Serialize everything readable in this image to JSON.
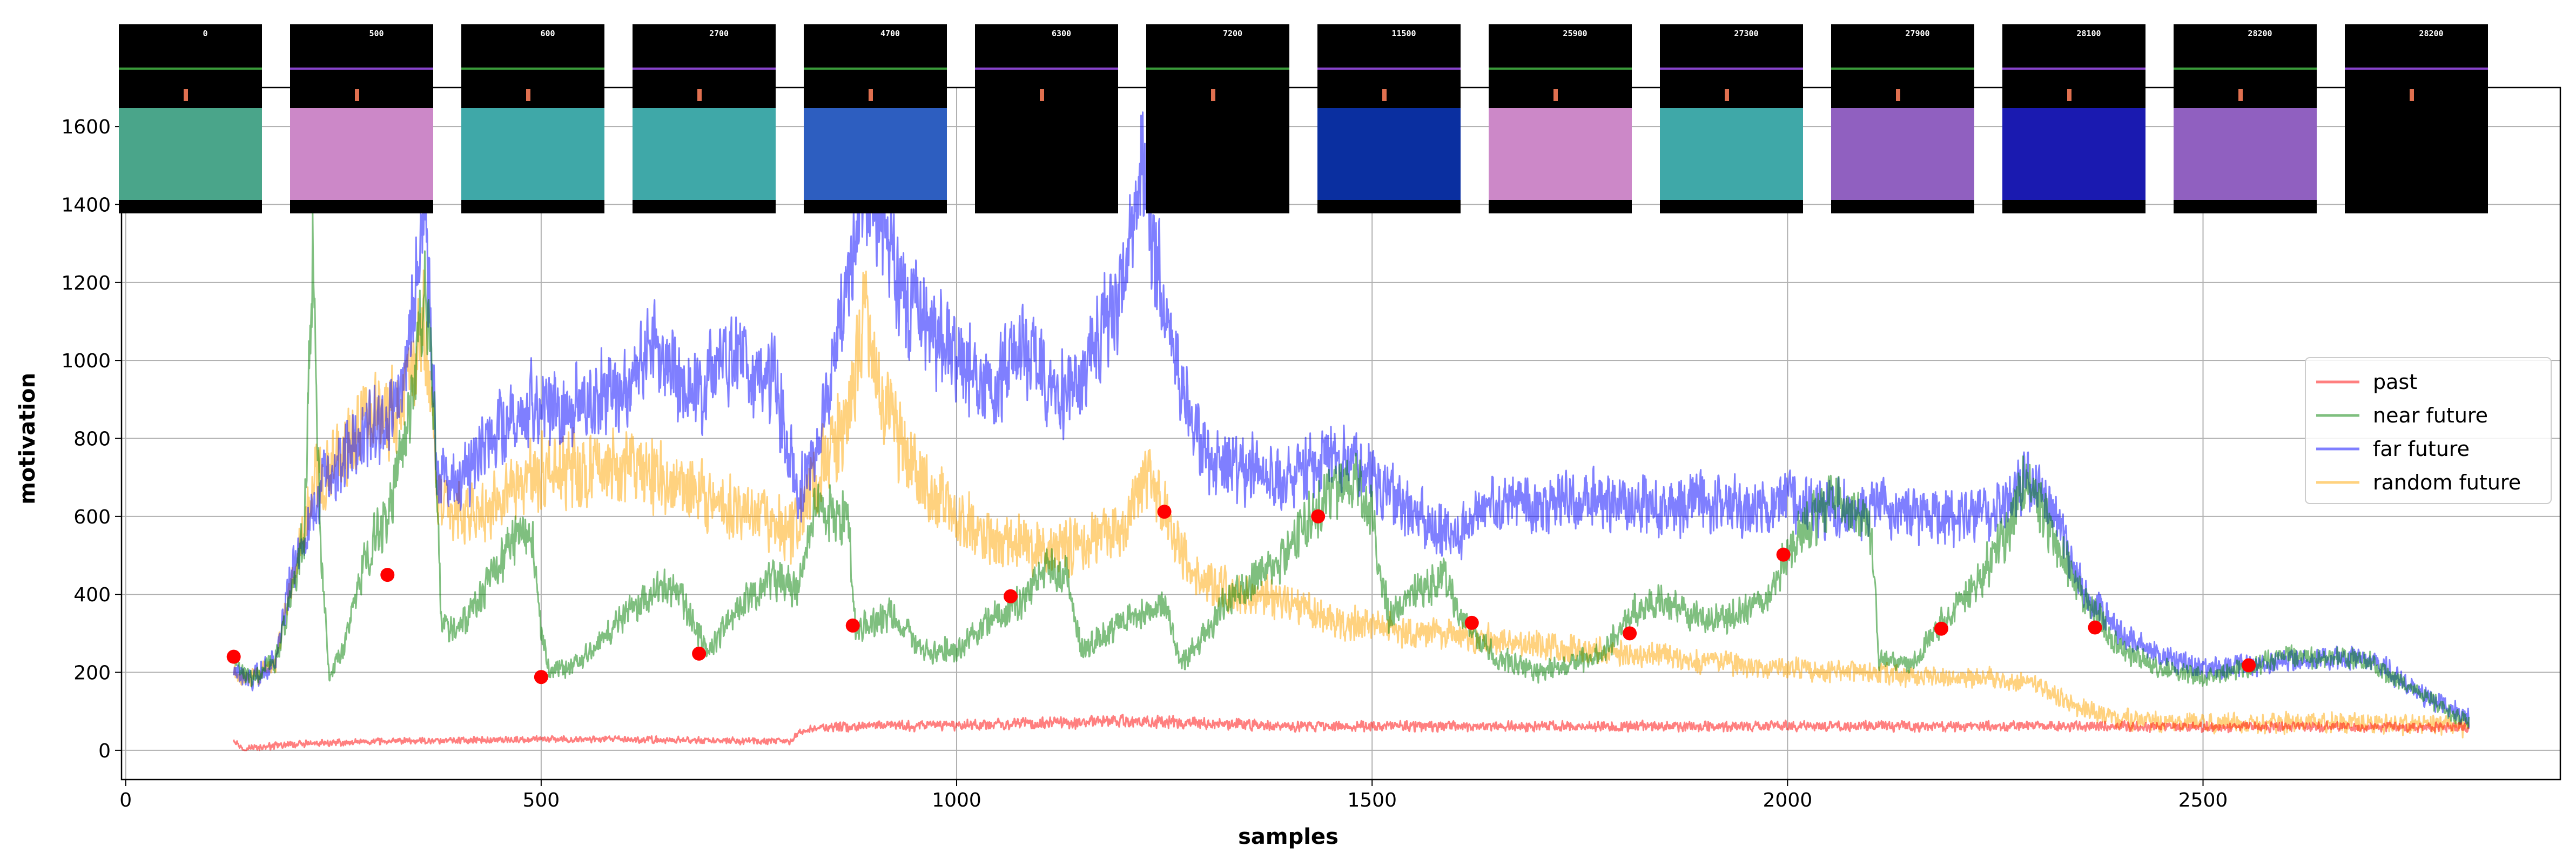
{
  "chart_data": {
    "type": "line",
    "title": "",
    "xlabel": "samples",
    "ylabel": "motivation",
    "xlim": [
      -5,
      2930
    ],
    "ylim": [
      -75,
      1700
    ],
    "xticks": [
      0,
      500,
      1000,
      1500,
      2000,
      2500
    ],
    "yticks": [
      0,
      200,
      400,
      600,
      800,
      1000,
      1200,
      1400,
      1600
    ],
    "grid": true,
    "legend_position": "center-right",
    "x_range_of_series": [
      130,
      2820
    ],
    "series": [
      {
        "name": "past",
        "color": "#ff0000",
        "alpha": 0.5,
        "anchors": [
          [
            130,
            30
          ],
          [
            140,
            5
          ],
          [
            200,
            15
          ],
          [
            300,
            22
          ],
          [
            400,
            26
          ],
          [
            500,
            28
          ],
          [
            600,
            28
          ],
          [
            700,
            25
          ],
          [
            800,
            22
          ],
          [
            810,
            45
          ],
          [
            830,
            58
          ],
          [
            900,
            62
          ],
          [
            1000,
            65
          ],
          [
            1100,
            70
          ],
          [
            1200,
            75
          ],
          [
            1300,
            70
          ],
          [
            1400,
            62
          ],
          [
            1500,
            62
          ],
          [
            1600,
            62
          ],
          [
            1700,
            62
          ],
          [
            1800,
            62
          ],
          [
            1900,
            62
          ],
          [
            2000,
            62
          ],
          [
            2100,
            62
          ],
          [
            2200,
            62
          ],
          [
            2300,
            62
          ],
          [
            2400,
            62
          ],
          [
            2500,
            60
          ],
          [
            2600,
            60
          ],
          [
            2700,
            60
          ],
          [
            2820,
            58
          ]
        ]
      },
      {
        "name": "near future",
        "color": "#008000",
        "alpha": 0.5,
        "anchors": [
          [
            130,
            230
          ],
          [
            150,
            180
          ],
          [
            180,
            230
          ],
          [
            200,
            400
          ],
          [
            215,
            550
          ],
          [
            225,
            1300
          ],
          [
            235,
            500
          ],
          [
            245,
            200
          ],
          [
            260,
            250
          ],
          [
            290,
            500
          ],
          [
            315,
            600
          ],
          [
            345,
            900
          ],
          [
            360,
            1200
          ],
          [
            372,
            800
          ],
          [
            380,
            320
          ],
          [
            400,
            320
          ],
          [
            430,
            400
          ],
          [
            470,
            560
          ],
          [
            490,
            520
          ],
          [
            500,
            300
          ],
          [
            510,
            200
          ],
          [
            540,
            220
          ],
          [
            580,
            300
          ],
          [
            620,
            380
          ],
          [
            660,
            430
          ],
          [
            680,
            350
          ],
          [
            700,
            250
          ],
          [
            740,
            380
          ],
          [
            780,
            440
          ],
          [
            810,
            420
          ],
          [
            830,
            620
          ],
          [
            860,
            600
          ],
          [
            870,
            580
          ],
          [
            878,
            320
          ],
          [
            890,
            320
          ],
          [
            920,
            350
          ],
          [
            960,
            250
          ],
          [
            1000,
            260
          ],
          [
            1040,
            330
          ],
          [
            1080,
            390
          ],
          [
            1110,
            470
          ],
          [
            1130,
            460
          ],
          [
            1150,
            260
          ],
          [
            1200,
            330
          ],
          [
            1250,
            380
          ],
          [
            1270,
            220
          ],
          [
            1300,
            300
          ],
          [
            1330,
            400
          ],
          [
            1380,
            460
          ],
          [
            1420,
            580
          ],
          [
            1450,
            660
          ],
          [
            1480,
            700
          ],
          [
            1500,
            600
          ],
          [
            1520,
            340
          ],
          [
            1550,
            410
          ],
          [
            1590,
            440
          ],
          [
            1610,
            330
          ],
          [
            1650,
            240
          ],
          [
            1700,
            200
          ],
          [
            1750,
            230
          ],
          [
            1780,
            250
          ],
          [
            1810,
            350
          ],
          [
            1850,
            380
          ],
          [
            1900,
            330
          ],
          [
            1950,
            360
          ],
          [
            1980,
            400
          ],
          [
            2000,
            510
          ],
          [
            2050,
            640
          ],
          [
            2100,
            580
          ],
          [
            2110,
            230
          ],
          [
            2150,
            220
          ],
          [
            2180,
            320
          ],
          [
            2220,
            400
          ],
          [
            2260,
            540
          ],
          [
            2290,
            700
          ],
          [
            2320,
            540
          ],
          [
            2350,
            420
          ],
          [
            2400,
            260
          ],
          [
            2450,
            210
          ],
          [
            2500,
            190
          ],
          [
            2550,
            210
          ],
          [
            2600,
            240
          ],
          [
            2700,
            230
          ],
          [
            2750,
            160
          ],
          [
            2820,
            70
          ]
        ]
      },
      {
        "name": "far future",
        "color": "#0000ff",
        "alpha": 0.5,
        "anchors": [
          [
            130,
            200
          ],
          [
            150,
            180
          ],
          [
            180,
            230
          ],
          [
            200,
            450
          ],
          [
            215,
            550
          ],
          [
            240,
            700
          ],
          [
            280,
            800
          ],
          [
            330,
            900
          ],
          [
            360,
            1380
          ],
          [
            375,
            700
          ],
          [
            400,
            680
          ],
          [
            440,
            800
          ],
          [
            490,
            900
          ],
          [
            530,
            860
          ],
          [
            560,
            900
          ],
          [
            600,
            940
          ],
          [
            640,
            1040
          ],
          [
            680,
            900
          ],
          [
            730,
            1020
          ],
          [
            780,
            960
          ],
          [
            810,
            650
          ],
          [
            840,
            870
          ],
          [
            870,
            1200
          ],
          [
            890,
            1450
          ],
          [
            910,
            1350
          ],
          [
            940,
            1150
          ],
          [
            980,
            1050
          ],
          [
            1040,
            920
          ],
          [
            1080,
            1050
          ],
          [
            1120,
            900
          ],
          [
            1160,
            980
          ],
          [
            1200,
            1200
          ],
          [
            1225,
            1500
          ],
          [
            1240,
            1250
          ],
          [
            1270,
            920
          ],
          [
            1300,
            740
          ],
          [
            1350,
            720
          ],
          [
            1400,
            700
          ],
          [
            1450,
            760
          ],
          [
            1500,
            700
          ],
          [
            1560,
            600
          ],
          [
            1600,
            550
          ],
          [
            1650,
            640
          ],
          [
            1700,
            620
          ],
          [
            1750,
            650
          ],
          [
            1800,
            640
          ],
          [
            1850,
            620
          ],
          [
            1900,
            640
          ],
          [
            1950,
            620
          ],
          [
            2000,
            640
          ],
          [
            2050,
            620
          ],
          [
            2100,
            620
          ],
          [
            2150,
            610
          ],
          [
            2200,
            600
          ],
          [
            2250,
            610
          ],
          [
            2290,
            690
          ],
          [
            2320,
            600
          ],
          [
            2360,
            400
          ],
          [
            2400,
            300
          ],
          [
            2450,
            240
          ],
          [
            2500,
            210
          ],
          [
            2550,
            220
          ],
          [
            2600,
            230
          ],
          [
            2700,
            240
          ],
          [
            2750,
            160
          ],
          [
            2820,
            80
          ]
        ]
      },
      {
        "name": "random future",
        "color": "#ffa500",
        "alpha": 0.5,
        "anchors": [
          [
            130,
            200
          ],
          [
            150,
            180
          ],
          [
            180,
            230
          ],
          [
            200,
            450
          ],
          [
            230,
            700
          ],
          [
            260,
            760
          ],
          [
            290,
            840
          ],
          [
            330,
            880
          ],
          [
            360,
            1100
          ],
          [
            375,
            640
          ],
          [
            400,
            600
          ],
          [
            440,
            620
          ],
          [
            480,
            700
          ],
          [
            520,
            720
          ],
          [
            560,
            720
          ],
          [
            600,
            740
          ],
          [
            640,
            710
          ],
          [
            680,
            660
          ],
          [
            720,
            620
          ],
          [
            760,
            600
          ],
          [
            800,
            560
          ],
          [
            830,
            700
          ],
          [
            870,
            850
          ],
          [
            890,
            1120
          ],
          [
            910,
            900
          ],
          [
            950,
            720
          ],
          [
            1000,
            600
          ],
          [
            1050,
            540
          ],
          [
            1100,
            520
          ],
          [
            1150,
            520
          ],
          [
            1200,
            570
          ],
          [
            1230,
            720
          ],
          [
            1250,
            620
          ],
          [
            1280,
            470
          ],
          [
            1300,
            420
          ],
          [
            1350,
            400
          ],
          [
            1400,
            380
          ],
          [
            1450,
            330
          ],
          [
            1500,
            320
          ],
          [
            1550,
            300
          ],
          [
            1600,
            300
          ],
          [
            1650,
            280
          ],
          [
            1700,
            270
          ],
          [
            1750,
            260
          ],
          [
            1800,
            250
          ],
          [
            1850,
            240
          ],
          [
            1900,
            230
          ],
          [
            1950,
            220
          ],
          [
            2000,
            210
          ],
          [
            2050,
            200
          ],
          [
            2100,
            200
          ],
          [
            2150,
            190
          ],
          [
            2200,
            190
          ],
          [
            2250,
            185
          ],
          [
            2300,
            170
          ],
          [
            2350,
            110
          ],
          [
            2400,
            80
          ],
          [
            2500,
            70
          ],
          [
            2600,
            70
          ],
          [
            2700,
            70
          ],
          [
            2820,
            60
          ]
        ]
      }
    ],
    "markers": {
      "color": "#ff0000",
      "points": [
        [
          130,
          240
        ],
        [
          315,
          450
        ],
        [
          500,
          188
        ],
        [
          690,
          248
        ],
        [
          875,
          320
        ],
        [
          1065,
          395
        ],
        [
          1250,
          612
        ],
        [
          1435,
          600
        ],
        [
          1620,
          327
        ],
        [
          1810,
          300
        ],
        [
          1995,
          502
        ],
        [
          2185,
          312
        ],
        [
          2370,
          315
        ],
        [
          2555,
          218
        ]
      ]
    },
    "thumbnails": {
      "scores": [
        "0",
        "500",
        "600",
        "2700",
        "4700",
        "6300",
        "7200",
        "11500",
        "25900",
        "27300",
        "27900",
        "28100",
        "28200",
        "28200"
      ],
      "scene_colors": [
        "#4aa58a",
        "#cc88c8",
        "#3fa8a8",
        "#3fa8a8",
        "#2d5ec0",
        "#000000",
        "#000000",
        "#0a2fa0",
        "#cc88c8",
        "#3fa8a8",
        "#9060c0",
        "#1a1ab0",
        "#9060c0",
        "#000000"
      ]
    }
  }
}
